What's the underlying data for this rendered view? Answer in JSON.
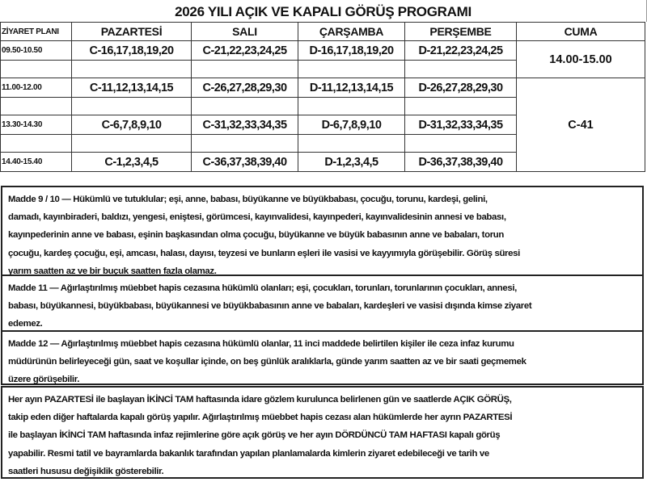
{
  "title": "2026 YILI AÇIK VE KAPALI GÖRÜŞ PROGRAMI",
  "table": {
    "headers": [
      "ZİYARET PLANI",
      "PAZARTESİ",
      "SALI",
      "ÇARŞAMBA",
      "PERŞEMBE",
      "CUMA"
    ],
    "rows": [
      {
        "time": "09.50-10.50",
        "cells": [
          "C-16,17,18,19,20",
          "C-21,22,23,24,25",
          "D-16,17,18,19,20",
          "D-21,22,23,24,25"
        ]
      },
      {
        "time": "11.00-12.00",
        "cells": [
          "C-11,12,13,14,15",
          "C-26,27,28,29,30",
          "D-11,12,13,14,15",
          "D-26,27,28,29,30"
        ]
      },
      {
        "time": "13.30-14.30",
        "cells": [
          "C-6,7,8,9,10",
          "C-31,32,33,34,35",
          "D-6,7,8,9,10",
          "D-31,32,33,34,35"
        ]
      },
      {
        "time": "14.40-15.40",
        "cells": [
          "C-1,2,3,4,5",
          "C-36,37,38,39,40",
          "D-1,2,3,4,5",
          "D-36,37,38,39,40"
        ]
      }
    ],
    "cuma_time": "14.00-15.00",
    "cuma_group": "C-41"
  },
  "paragraphs": [
    {
      "lines": [
        "Madde 9 / 10 — Hükümlü ve tutuklular; eşi, anne, babası, büyükanne ve büyükbabası, çocuğu, torunu, kardeşi, gelini,",
        "damadı, kayınbiraderi, baldızı, yengesi, eniştesi, görümcesi, kayınvalidesi, kayınpederi, kayınvalidesinin annesi ve babası,",
        "kayınpederinin anne ve babası, eşinin başkasından olma çocuğu, büyükanne ve büyük babasının anne ve babaları, torun",
        "çocuğu, kardeş çocuğu, eşi, amcası, halası, dayısı, teyzesi ve bunların eşleri ile vasisi ve kayyımıyla görüşebilir. Görüş süresi",
        "yarım saatten az ve bir buçuk saatten fazla olamaz."
      ]
    },
    {
      "lines": [
        "Madde 11 — Ağırlaştırılmış müebbet hapis cezasına hükümlü olanları; eşi, çocukları, torunları, torunlarının çocukları, annesi,",
        "babası, büyükannesi, büyükbabası, büyükannesi ve büyükbabasının anne ve babaları, kardeşleri ve vasisi dışında kimse ziyaret",
        "edemez."
      ]
    },
    {
      "lines": [
        "Madde 12 — Ağırlaştırılmış müebbet hapis cezasına hükümlü olanlar, 11 inci maddede belirtilen kişiler ile ceza infaz kurumu",
        "müdürünün belirleyeceği gün, saat ve koşullar içinde, on beş günlük aralıklarla, günde yarım saatten az ve bir saati geçmemek",
        "üzere görüşebilir."
      ]
    },
    {
      "lines": [
        "Her ayın PAZARTESİ  ile başlayan İKİNCİ TAM haftasında idare gözlem kurulunca belirlenen gün ve saatlerde AÇIK GÖRÜŞ,",
        "takip eden diğer haftalarda  kapalı görüş yapılır. Ağırlaştırılmış müebbet hapis cezası alan hükümlerde her ayrın  PAZARTESİ",
        "ile başlayan İKİNCİ TAM   haftasında infaz rejimlerine göre açık görüş ve her ayın DÖRDÜNCÜ TAM HAFTASI kapalı görüş",
        "yapabilir. Resmi tatil ve bayramlarda bakanlık tarafından yapılan planlamalarda kimlerin ziyaret edebileceği ve tarih ve",
        "saatleri hususu değişiklik gösterebilir."
      ]
    }
  ]
}
